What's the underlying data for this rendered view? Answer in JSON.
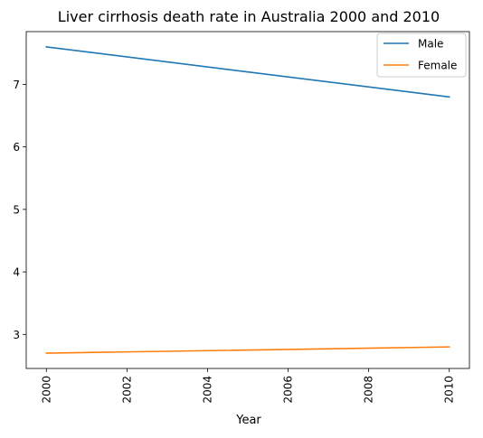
{
  "chart_data": {
    "type": "line",
    "title": "Liver cirrhosis death rate in Australia 2000 and 2010",
    "xlabel": "Year",
    "ylabel": "",
    "x": [
      2000,
      2010
    ],
    "xlim": [
      1999.5,
      2010.5
    ],
    "ylim": [
      2.455,
      7.845
    ],
    "xticks": [
      2000,
      2002,
      2004,
      2006,
      2008,
      2010
    ],
    "yticks": [
      3,
      4,
      5,
      6,
      7
    ],
    "xtick_rotation": "vertical",
    "grid": false,
    "legend_position": "upper right",
    "series": [
      {
        "name": "Male",
        "color": "#1f77b4",
        "values": [
          7.6,
          6.8
        ]
      },
      {
        "name": "Female",
        "color": "#ff7f0e",
        "values": [
          2.7,
          2.8
        ]
      }
    ]
  }
}
